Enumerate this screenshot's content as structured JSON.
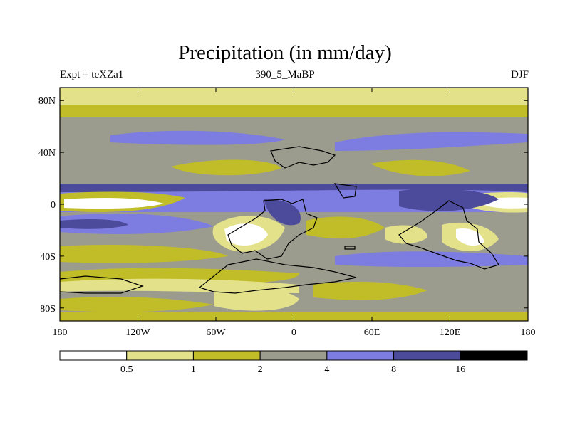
{
  "chart_data": {
    "type": "contour-map",
    "title": "Precipitation (in mm/day)",
    "left_string": "Expt = teXZa1",
    "center_string": "390_5_MaBP",
    "right_string": "DJF",
    "x_ticks": [
      "180",
      "120W",
      "60W",
      "0",
      "60E",
      "120E",
      "180"
    ],
    "x_tick_values": [
      -180,
      -120,
      -60,
      0,
      60,
      120,
      180
    ],
    "y_ticks": [
      "80N",
      "40N",
      "0",
      "40S",
      "80S"
    ],
    "y_tick_values": [
      80,
      40,
      0,
      -40,
      -80
    ],
    "xlim": [
      -180,
      180
    ],
    "ylim": [
      -90,
      90
    ],
    "colorbar": {
      "levels": [
        "0.5",
        "1",
        "2",
        "4",
        "8",
        "16"
      ],
      "colors": [
        "#ffffff",
        "#e3e28b",
        "#c0bd28",
        "#9c9c8e",
        "#7d7ce0",
        "#4c4a9a",
        "#000000"
      ]
    }
  }
}
